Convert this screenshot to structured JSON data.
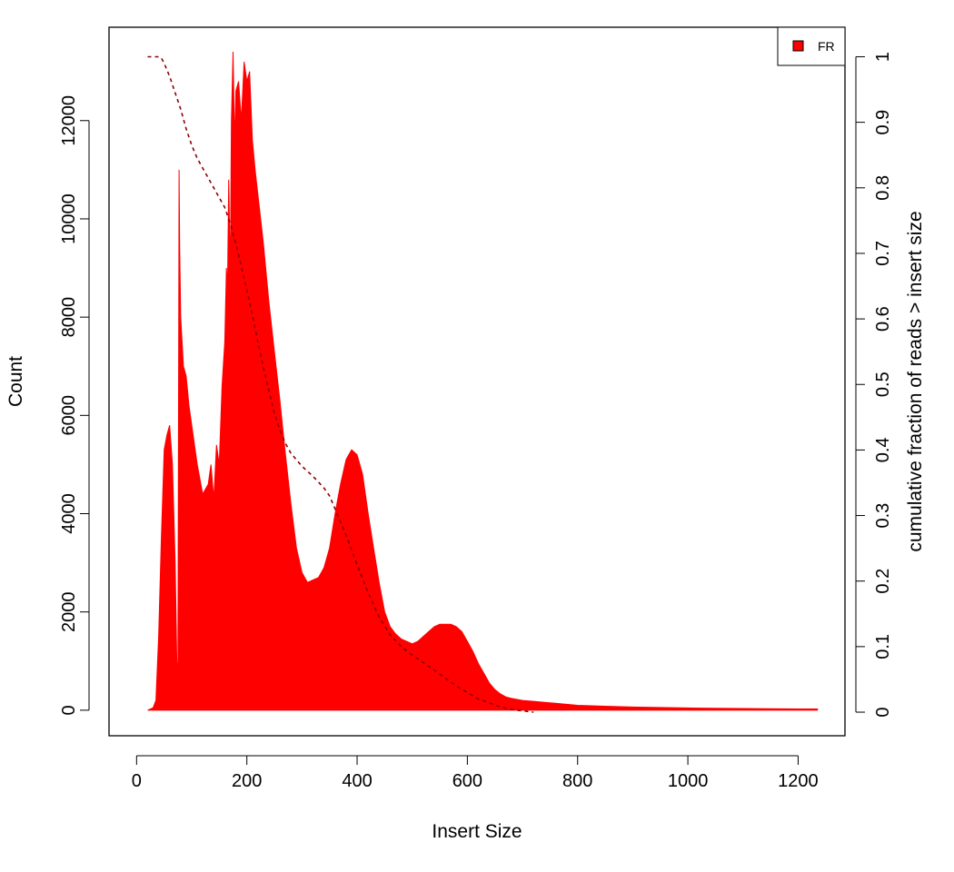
{
  "chart_data": {
    "type": "area",
    "title": "",
    "xlabel": "Insert Size",
    "ylabel": "Count",
    "y2label": "cumulative fraction of reads > insert size",
    "xlim": [
      -50,
      1285
    ],
    "ylim": [
      -520,
      13900
    ],
    "y2lim": [
      -0.036,
      1.045
    ],
    "xticks": [
      0,
      200,
      400,
      600,
      800,
      1000,
      1200
    ],
    "yticks": [
      0,
      2000,
      4000,
      6000,
      8000,
      10000,
      12000
    ],
    "y2ticks": [
      0,
      0.1,
      0.2,
      0.3,
      0.4,
      0.5,
      0.6,
      0.7,
      0.8,
      0.9,
      1
    ],
    "y2tick_labels": [
      "0",
      "0.1",
      "0.2",
      "0.3",
      "0.4",
      "0.5",
      "0.6",
      "0.7",
      "0.8",
      "0.9",
      "1"
    ],
    "legend": {
      "position": "top-right",
      "entries": [
        {
          "label": "FR",
          "color": "#ff0000"
        }
      ]
    },
    "colors": {
      "histogram": "#ff0000",
      "cumulative": "#8b0000"
    },
    "series": [
      {
        "type": "area",
        "x": [
          20,
          30,
          35,
          40,
          45,
          50,
          55,
          60,
          65,
          70,
          73,
          75,
          76,
          77,
          78,
          80,
          85,
          90,
          95,
          100,
          110,
          120,
          130,
          135,
          140,
          145,
          150,
          155,
          160,
          163,
          165,
          167,
          170,
          172,
          175,
          178,
          180,
          185,
          190,
          195,
          200,
          205,
          210,
          215,
          220,
          225,
          230,
          240,
          250,
          260,
          270,
          280,
          290,
          300,
          310,
          320,
          330,
          340,
          350,
          360,
          370,
          380,
          390,
          400,
          410,
          420,
          430,
          440,
          450,
          460,
          470,
          480,
          490,
          500,
          510,
          520,
          530,
          540,
          550,
          560,
          570,
          580,
          590,
          600,
          610,
          620,
          630,
          640,
          650,
          660,
          670,
          680,
          690,
          700,
          720,
          740,
          760,
          780,
          800,
          850,
          900,
          950,
          1000,
          1050,
          1100,
          1150,
          1200,
          1235
        ],
        "values": [
          0,
          50,
          200,
          1500,
          3500,
          5300,
          5600,
          5800,
          5000,
          3000,
          1000,
          700,
          5500,
          11000,
          9500,
          8000,
          7000,
          6800,
          6200,
          5800,
          5000,
          4400,
          4600,
          5000,
          4300,
          5400,
          5000,
          6600,
          7500,
          9000,
          8600,
          10800,
          8800,
          12000,
          13400,
          11500,
          12600,
          12800,
          12000,
          13200,
          12800,
          13000,
          11600,
          11000,
          10500,
          10000,
          9500,
          8300,
          7300,
          6300,
          5200,
          4200,
          3300,
          2800,
          2600,
          2650,
          2700,
          2900,
          3300,
          4000,
          4600,
          5100,
          5300,
          5200,
          4800,
          4000,
          3300,
          2600,
          2000,
          1700,
          1550,
          1450,
          1400,
          1350,
          1400,
          1500,
          1600,
          1700,
          1750,
          1750,
          1750,
          1700,
          1600,
          1400,
          1200,
          950,
          750,
          550,
          420,
          330,
          270,
          240,
          220,
          200,
          180,
          160,
          140,
          120,
          100,
          80,
          65,
          55,
          45,
          40,
          35,
          30,
          25,
          25
        ]
      },
      {
        "type": "line",
        "axis": "right",
        "x": [
          20,
          40,
          45,
          50,
          60,
          70,
          80,
          90,
          100,
          110,
          120,
          130,
          140,
          150,
          160,
          170,
          180,
          190,
          200,
          210,
          220,
          230,
          240,
          250,
          260,
          270,
          280,
          300,
          320,
          340,
          350,
          360,
          380,
          400,
          420,
          440,
          460,
          480,
          500,
          520,
          540,
          560,
          580,
          600,
          620,
          640,
          660,
          680,
          700,
          720
        ],
        "values": [
          1.0,
          1.0,
          0.998,
          0.99,
          0.97,
          0.945,
          0.92,
          0.89,
          0.865,
          0.845,
          0.83,
          0.815,
          0.8,
          0.785,
          0.77,
          0.745,
          0.715,
          0.68,
          0.645,
          0.605,
          0.565,
          0.525,
          0.49,
          0.455,
          0.43,
          0.41,
          0.395,
          0.375,
          0.36,
          0.342,
          0.33,
          0.31,
          0.27,
          0.225,
          0.182,
          0.145,
          0.118,
          0.1,
          0.087,
          0.076,
          0.064,
          0.052,
          0.04,
          0.03,
          0.02,
          0.014,
          0.008,
          0.004,
          0.002,
          0.0
        ]
      }
    ]
  }
}
